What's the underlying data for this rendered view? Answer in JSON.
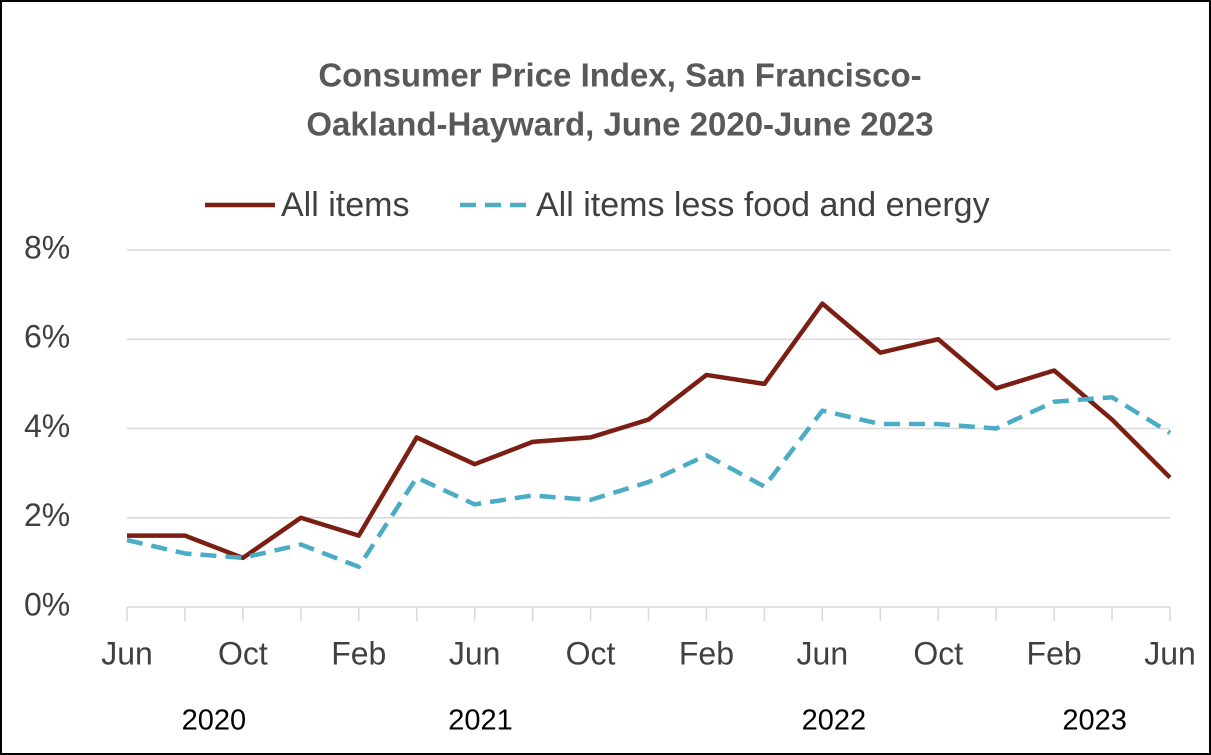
{
  "chart_data": {
    "type": "line",
    "title": [
      "Consumer Price Index, San Francisco-",
      "Oakland-Hayward, June 2020-June 2023"
    ],
    "categories": [
      "Jun",
      null,
      "Oct",
      null,
      "Feb",
      null,
      "Jun",
      null,
      "Oct",
      null,
      "Feb",
      null,
      "Jun",
      null,
      "Oct",
      null,
      "Feb",
      null,
      "Jun"
    ],
    "year_labels": [
      "2020",
      "2021",
      "2022",
      "2023"
    ],
    "series": [
      {
        "name": "All items",
        "color": "#7b1f14",
        "dash": false,
        "values": [
          1.6,
          1.6,
          1.1,
          2.0,
          1.6,
          3.8,
          3.2,
          3.7,
          3.8,
          4.2,
          5.2,
          5.0,
          6.8,
          5.7,
          6.0,
          4.9,
          5.3,
          4.2,
          2.9
        ]
      },
      {
        "name": "All items less food and energy",
        "color": "#4bacc6",
        "dash": true,
        "values": [
          1.5,
          1.2,
          1.1,
          1.4,
          0.9,
          2.9,
          2.3,
          2.5,
          2.4,
          2.8,
          3.4,
          2.7,
          4.4,
          4.1,
          4.1,
          4.0,
          4.6,
          4.7,
          3.9
        ]
      }
    ],
    "ylim": [
      0,
      8
    ],
    "yticks": [
      {
        "value": 0,
        "label": "0%"
      },
      {
        "value": 2,
        "label": "2%"
      },
      {
        "value": 4,
        "label": "4%"
      },
      {
        "value": 6,
        "label": "6%"
      },
      {
        "value": 8,
        "label": "8%"
      }
    ],
    "grid": true,
    "legend": "top"
  }
}
